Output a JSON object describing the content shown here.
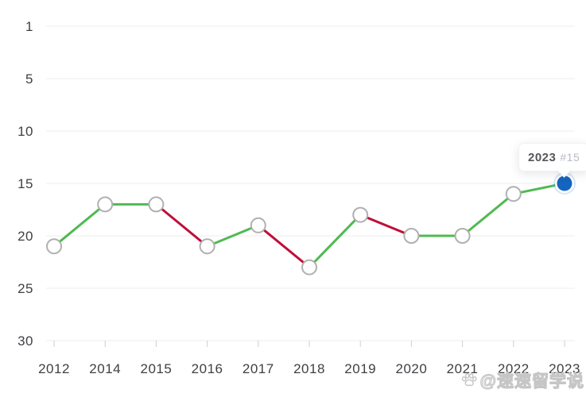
{
  "tooltip": {
    "year": "2023",
    "rank_label": "#15"
  },
  "watermark": {
    "icon": "paw-icon",
    "text": "@速速留学说"
  },
  "chart_data": {
    "type": "line",
    "categories": [
      "2012",
      "2014",
      "2015",
      "2016",
      "2017",
      "2018",
      "2019",
      "2020",
      "2021",
      "2022",
      "2023"
    ],
    "values": [
      21,
      17,
      17,
      21,
      19,
      23,
      18,
      20,
      20,
      16,
      15
    ],
    "series_name": "ranking-by-year",
    "y_ticks": [
      1,
      5,
      10,
      15,
      20,
      25,
      30
    ],
    "y_axis_inverted": true,
    "ylim": [
      1,
      30
    ],
    "grid": true,
    "legend": false,
    "title": "",
    "xlabel": "",
    "ylabel": "",
    "highlighted_point": {
      "category": "2023",
      "value": 15
    },
    "colors": {
      "line_green": "#4fba52",
      "line_red": "#c10d3a",
      "current_point_blue": "#1565c0",
      "current_point_halo": "rgba(21,101,192,0.16)",
      "marker_fill": "#ffffff",
      "marker_stroke": "#b0b0b0",
      "gridline": "#ececec",
      "axis_tick": "#cfcfcf",
      "axis_label": "#3e4044",
      "tooltip_year": "#55565a",
      "tooltip_rank": "#b8bcc4",
      "watermark": "#c6c6c6"
    }
  }
}
